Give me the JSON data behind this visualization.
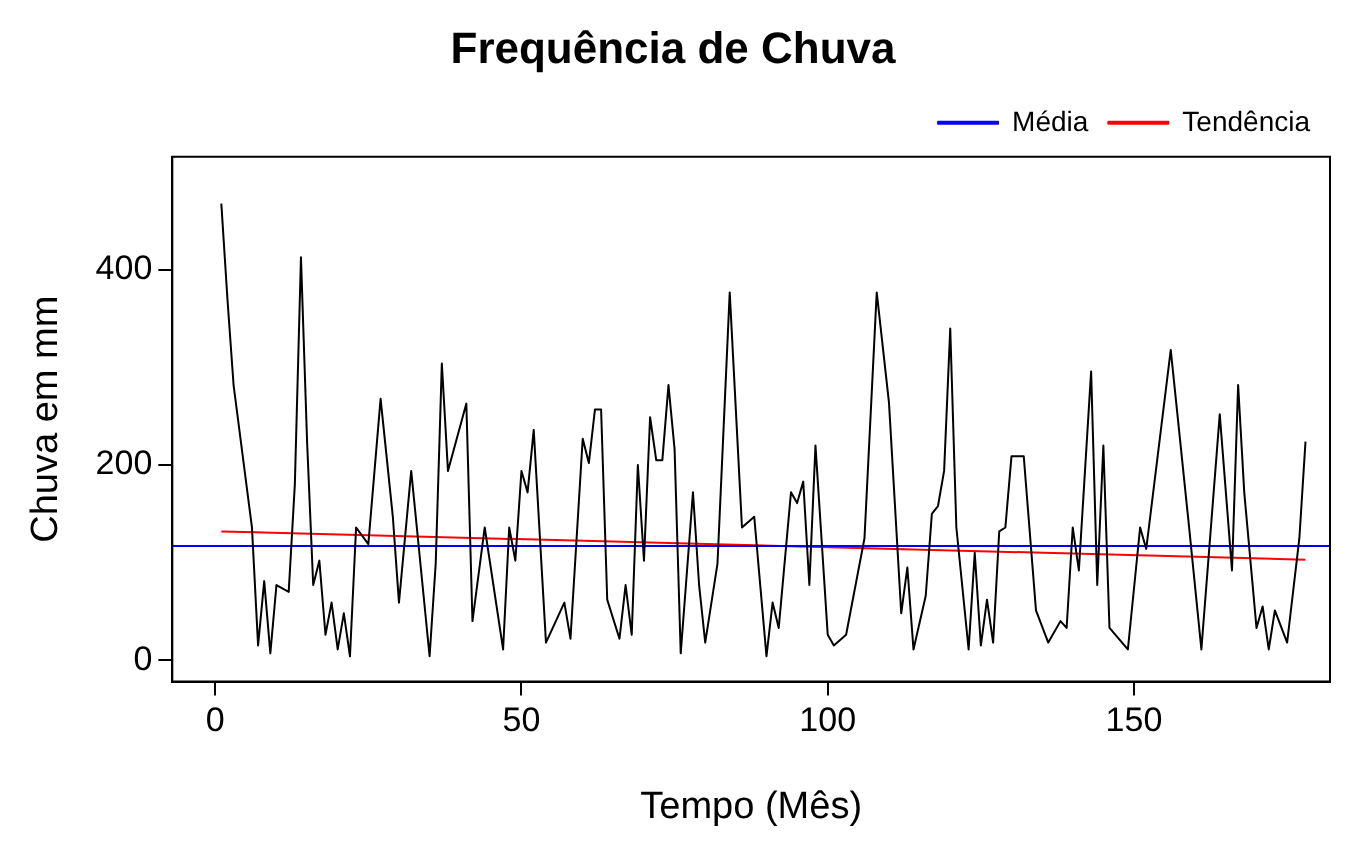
{
  "chart_data": {
    "type": "line",
    "title": "Frequência de Chuva",
    "xlabel": "Tempo (Mês)",
    "ylabel": "Chuva em mm",
    "xlim": [
      -7,
      182
    ],
    "xticks": [
      0,
      50,
      100,
      150
    ],
    "ylim": [
      -22,
      516
    ],
    "yticks": [
      0,
      200,
      400
    ],
    "grid": false,
    "legend": "top right",
    "marker": "none",
    "line_style": "solid",
    "series": [
      {
        "color": "#000000",
        "x": [
          1,
          2,
          3,
          6,
          7,
          8,
          9,
          10,
          12,
          13,
          14,
          15,
          16,
          17,
          18,
          19,
          20,
          21,
          22,
          23,
          25,
          27,
          29,
          30,
          32,
          35,
          36,
          37,
          38,
          41,
          42,
          44,
          47,
          48,
          49,
          50,
          51,
          52,
          54,
          57,
          58,
          60,
          61,
          62,
          63,
          64,
          66,
          67,
          68,
          69,
          70,
          71,
          72,
          73,
          74,
          75,
          76,
          78,
          79,
          80,
          82,
          84,
          86,
          88,
          90,
          91,
          92,
          94,
          95,
          96,
          97,
          98,
          100,
          101,
          103,
          106,
          108,
          110,
          112,
          113,
          114,
          116,
          117,
          118,
          119,
          120,
          121,
          123,
          124,
          125,
          126,
          127,
          128,
          129,
          130,
          132,
          134,
          136,
          138,
          139,
          140,
          141,
          143,
          144,
          145,
          146,
          149,
          151,
          152,
          156,
          159,
          161,
          164,
          166,
          167,
          168,
          170,
          171,
          172,
          173,
          175,
          177,
          178
        ],
        "values": [
          468,
          370,
          282,
          136,
          15,
          81,
          7,
          77,
          70,
          180,
          413,
          224,
          77,
          102,
          26,
          59,
          11,
          48,
          4,
          136,
          119,
          268,
          147,
          59,
          194,
          4,
          99,
          304,
          194,
          263,
          40,
          136,
          11,
          136,
          102,
          194,
          172,
          236,
          18,
          59,
          22,
          227,
          202,
          257,
          257,
          62,
          22,
          77,
          26,
          200,
          102,
          249,
          205,
          205,
          282,
          216,
          7,
          172,
          77,
          18,
          99,
          377,
          136,
          147,
          4,
          59,
          33,
          172,
          161,
          183,
          77,
          220,
          26,
          15,
          26,
          125,
          377,
          264,
          48,
          95,
          11,
          66,
          150,
          158,
          194,
          340,
          136,
          11,
          110,
          15,
          62,
          18,
          132,
          136,
          209,
          209,
          51,
          18,
          40,
          33,
          136,
          92,
          296,
          77,
          220,
          33,
          11,
          136,
          114,
          318,
          136,
          11,
          252,
          92,
          282,
          172,
          33,
          55,
          11,
          51,
          18,
          125,
          224
        ]
      },
      {
        "name": "Média",
        "color": "#0000ff",
        "x": [
          -7,
          182
        ],
        "values": [
          117,
          117
        ]
      },
      {
        "name": "Tendência",
        "color": "#ff0000",
        "x": [
          1,
          178
        ],
        "values": [
          132,
          103
        ]
      }
    ]
  }
}
